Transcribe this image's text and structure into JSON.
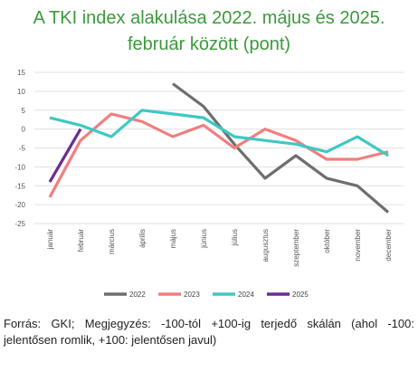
{
  "title_line1": "A TKI index alakulása 2022. május és 2025.",
  "title_line2": "február között (pont)",
  "note": "Forrás: GKI; Megjegyzés: -100-tól +100-ig terjedő skálán (ahol -100: jelentősen romlik, +100: jelentősen javul)",
  "chart_data": {
    "type": "line",
    "categories": [
      "január",
      "február",
      "március",
      "április",
      "május",
      "június",
      "július",
      "augusztus",
      "szeptember",
      "október",
      "november",
      "december"
    ],
    "yticks": [
      15,
      10,
      5,
      0,
      -5,
      -10,
      -15,
      -20,
      -25
    ],
    "ylim": [
      -25,
      15
    ],
    "grid": true,
    "legend_position": "bottom",
    "series": [
      {
        "name": "2022",
        "color": "#6e6e6e",
        "values": [
          null,
          null,
          null,
          null,
          12,
          6,
          -4,
          -13,
          -7,
          -13,
          -15,
          -22
        ]
      },
      {
        "name": "2023",
        "color": "#f07f7f",
        "values": [
          -18,
          -3,
          4,
          2,
          -2,
          1,
          -5,
          0,
          -3,
          -8,
          -8,
          -6
        ]
      },
      {
        "name": "2024",
        "color": "#3ec9c2",
        "values": [
          3,
          1,
          -2,
          5,
          4,
          3,
          -2,
          -3,
          -4,
          -6,
          -2,
          -7
        ]
      },
      {
        "name": "2025",
        "color": "#6a2d91",
        "values": [
          -14,
          0,
          null,
          null,
          null,
          null,
          null,
          null,
          null,
          null,
          null,
          null
        ]
      }
    ]
  }
}
